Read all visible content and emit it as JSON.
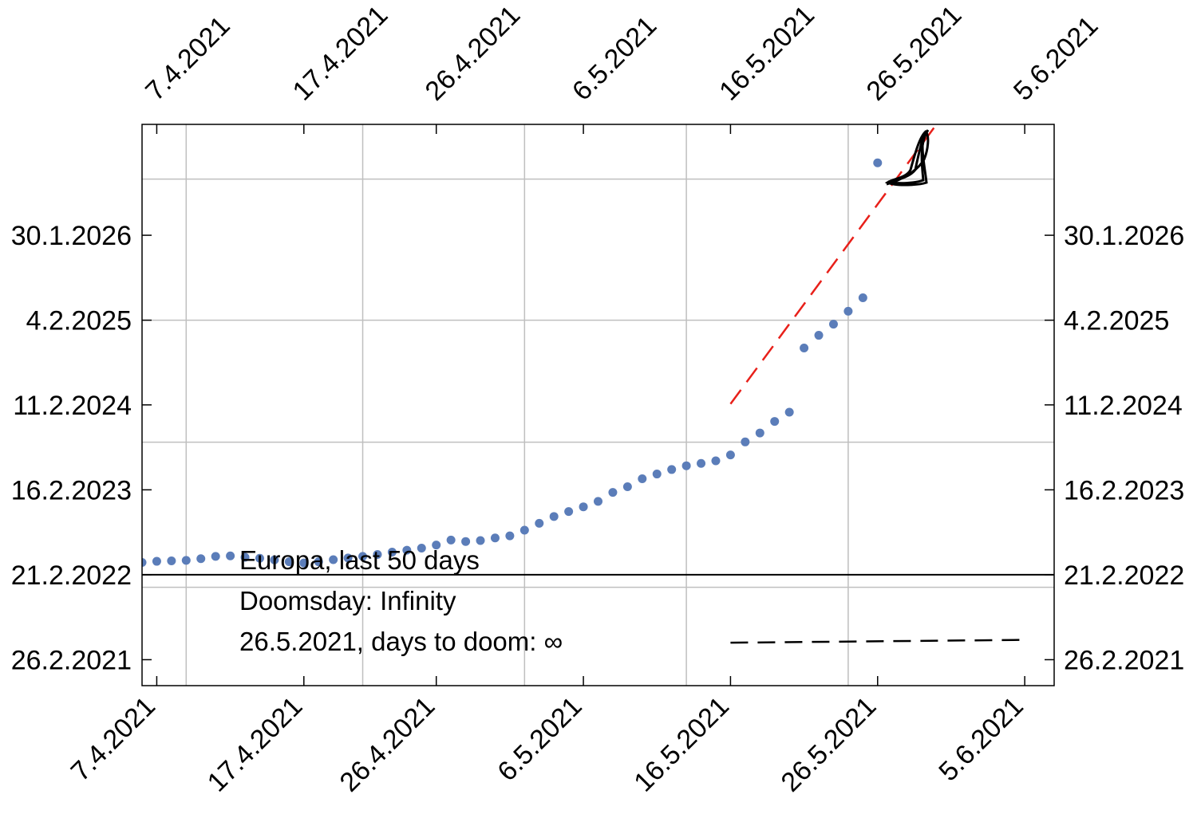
{
  "chart_data": {
    "type": "scatter",
    "title": "",
    "xlabel": "",
    "ylabel": "",
    "x_axis": {
      "type": "date",
      "range": [
        "2021-04-06",
        "2021-06-07"
      ],
      "ticks": [
        {
          "date": "2021-04-07",
          "label": "7.4.2021"
        },
        {
          "date": "2021-04-17",
          "label": "17.4.2021"
        },
        {
          "date": "2021-04-26",
          "label": "26.4.2021"
        },
        {
          "date": "2021-05-06",
          "label": "6.5.2021"
        },
        {
          "date": "2021-05-16",
          "label": "16.5.2021"
        },
        {
          "date": "2021-05-26",
          "label": "26.5.2021"
        },
        {
          "date": "2021-06-05",
          "label": "5.6.2021"
        }
      ],
      "gridlines": [
        "2021-04-09",
        "2021-04-21",
        "2021-05-02",
        "2021-05-13",
        "2021-05-24"
      ]
    },
    "y_axis": {
      "type": "date",
      "range": [
        "2020-11-08",
        "2027-05-15"
      ],
      "ticks": [
        {
          "date": "2021-02-26",
          "label": "26.2.2021"
        },
        {
          "date": "2022-02-21",
          "label": "21.2.2022"
        },
        {
          "date": "2023-02-16",
          "label": "16.2.2023"
        },
        {
          "date": "2024-02-11",
          "label": "11.2.2024"
        },
        {
          "date": "2025-02-04",
          "label": "4.2.2025"
        },
        {
          "date": "2026-01-30",
          "label": "30.1.2026"
        }
      ],
      "gridlines": [
        "2021-12-30",
        "2023-09-06",
        "2025-02-04",
        "2026-09-25"
      ]
    },
    "reference_line": {
      "y": "2022-02-21",
      "color": "#000000"
    },
    "series": [
      {
        "color": "#5b7db9",
        "marker": "dot",
        "points": [
          {
            "x": "2021-04-06",
            "y": "2022-04-14"
          },
          {
            "x": "2021-04-07",
            "y": "2022-04-19"
          },
          {
            "x": "2021-04-08",
            "y": "2022-04-21"
          },
          {
            "x": "2021-04-09",
            "y": "2022-04-23"
          },
          {
            "x": "2021-04-10",
            "y": "2022-04-30"
          },
          {
            "x": "2021-04-11",
            "y": "2022-05-10"
          },
          {
            "x": "2021-04-12",
            "y": "2022-05-12"
          },
          {
            "x": "2021-04-13",
            "y": "2022-05-06"
          },
          {
            "x": "2021-04-14",
            "y": "2022-05-02"
          },
          {
            "x": "2021-04-15",
            "y": "2022-04-25"
          },
          {
            "x": "2021-04-16",
            "y": "2022-04-17"
          },
          {
            "x": "2021-04-17",
            "y": "2022-04-12"
          },
          {
            "x": "2021-04-18",
            "y": "2022-04-17"
          },
          {
            "x": "2021-04-19",
            "y": "2022-04-26"
          },
          {
            "x": "2021-04-20",
            "y": "2022-05-03"
          },
          {
            "x": "2021-04-21",
            "y": "2022-05-10"
          },
          {
            "x": "2021-04-22",
            "y": "2022-05-18"
          },
          {
            "x": "2021-04-23",
            "y": "2022-05-28"
          },
          {
            "x": "2021-04-24",
            "y": "2022-06-05"
          },
          {
            "x": "2021-04-25",
            "y": "2022-06-14"
          },
          {
            "x": "2021-04-26",
            "y": "2022-06-27"
          },
          {
            "x": "2021-04-27",
            "y": "2022-07-18"
          },
          {
            "x": "2021-04-28",
            "y": "2022-07-12"
          },
          {
            "x": "2021-04-29",
            "y": "2022-07-16"
          },
          {
            "x": "2021-04-30",
            "y": "2022-07-27"
          },
          {
            "x": "2021-05-01",
            "y": "2022-08-05"
          },
          {
            "x": "2021-05-02",
            "y": "2022-08-29"
          },
          {
            "x": "2021-05-03",
            "y": "2022-09-27"
          },
          {
            "x": "2021-05-04",
            "y": "2022-10-26"
          },
          {
            "x": "2021-05-05",
            "y": "2022-11-16"
          },
          {
            "x": "2021-05-06",
            "y": "2022-12-06"
          },
          {
            "x": "2021-05-07",
            "y": "2022-12-29"
          },
          {
            "x": "2021-05-08",
            "y": "2023-02-05"
          },
          {
            "x": "2021-05-09",
            "y": "2023-03-01"
          },
          {
            "x": "2021-05-10",
            "y": "2023-04-04"
          },
          {
            "x": "2021-05-11",
            "y": "2023-04-24"
          },
          {
            "x": "2021-05-12",
            "y": "2023-05-13"
          },
          {
            "x": "2021-05-13",
            "y": "2023-05-29"
          },
          {
            "x": "2021-05-14",
            "y": "2023-06-08"
          },
          {
            "x": "2021-05-15",
            "y": "2023-06-19"
          },
          {
            "x": "2021-05-16",
            "y": "2023-07-14"
          },
          {
            "x": "2021-05-17",
            "y": "2023-09-07"
          },
          {
            "x": "2021-05-18",
            "y": "2023-10-15"
          },
          {
            "x": "2021-05-19",
            "y": "2023-12-03"
          },
          {
            "x": "2021-05-20",
            "y": "2024-01-11"
          },
          {
            "x": "2021-05-21",
            "y": "2024-10-09"
          },
          {
            "x": "2021-05-22",
            "y": "2024-12-02"
          },
          {
            "x": "2021-05-23",
            "y": "2025-01-18"
          },
          {
            "x": "2021-05-24",
            "y": "2025-03-14"
          },
          {
            "x": "2021-05-25",
            "y": "2025-05-10"
          },
          {
            "x": "2021-05-26",
            "y": "2026-12-03"
          }
        ]
      },
      {
        "color": "#e8201a",
        "style": "dashed",
        "points": [
          {
            "x": "2021-05-16",
            "y": "2024-02-15"
          },
          {
            "x": "2021-05-30",
            "y": "2027-05-15"
          }
        ]
      },
      {
        "color": "#000000",
        "style": "dashed",
        "points": [
          {
            "x": "2021-05-16",
            "y": "2021-05-09"
          },
          {
            "x": "2021-06-05",
            "y": "2021-05-21"
          }
        ]
      }
    ],
    "annotations": [
      "Europa, last 50 days",
      "Doomsday: Infinity",
      "26.5.2021, days to doom: ∞"
    ]
  }
}
